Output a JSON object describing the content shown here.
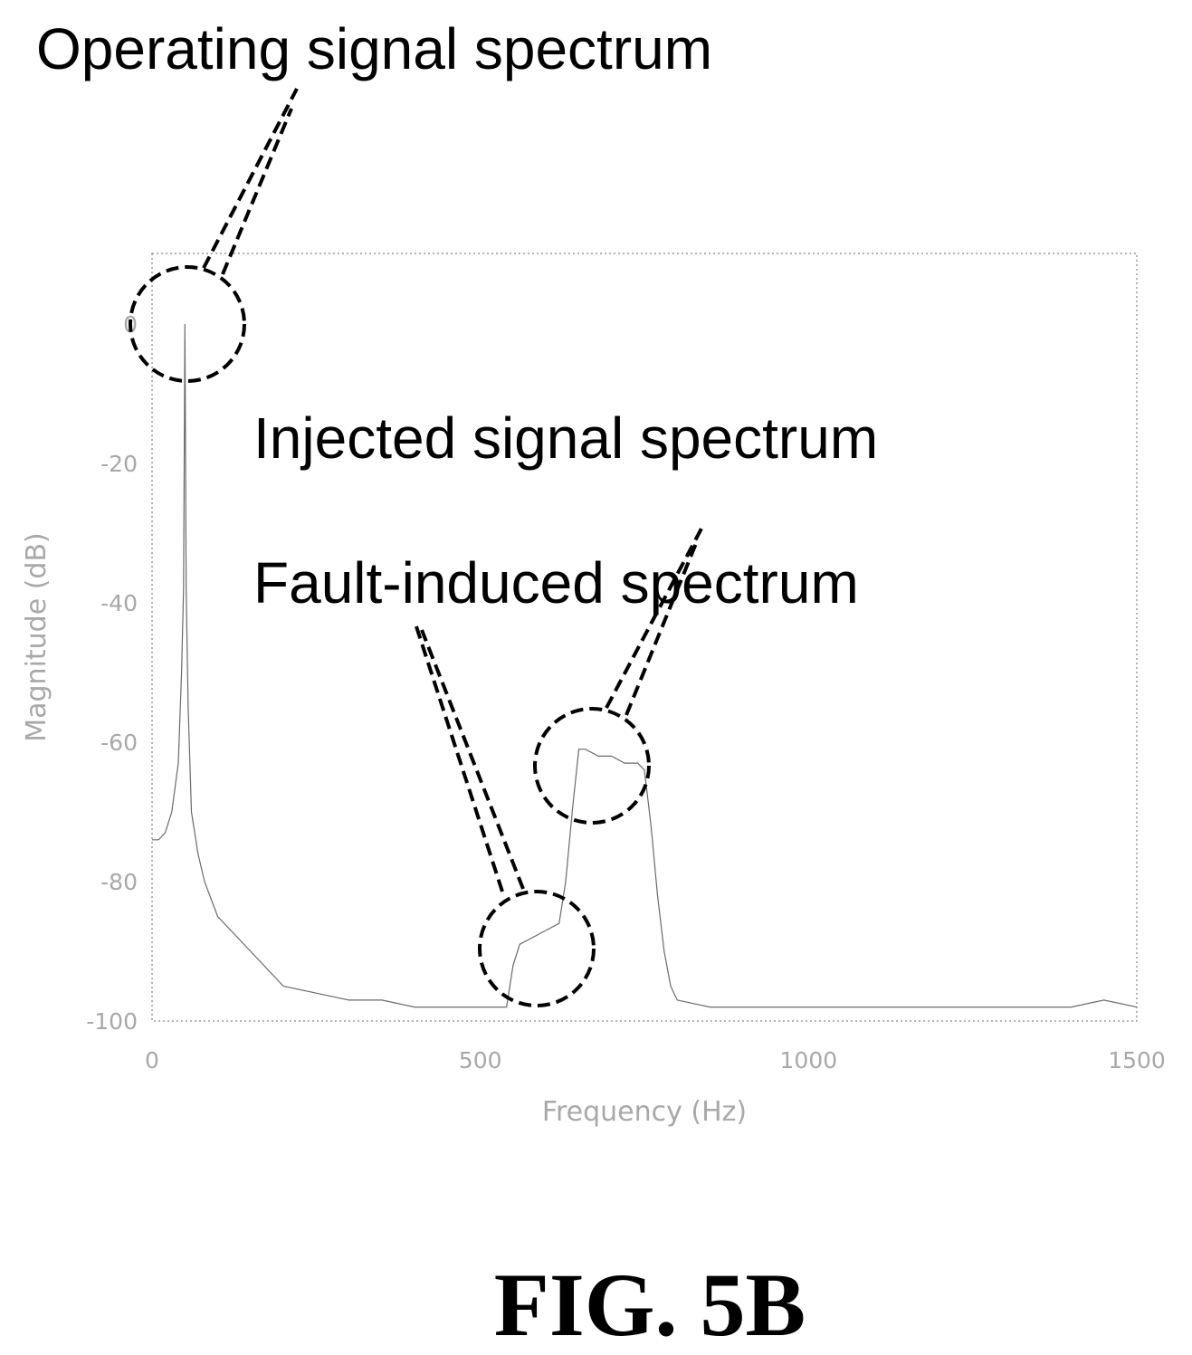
{
  "chart_data": {
    "type": "line",
    "xlabel": "Frequency (Hz)",
    "ylabel": "Magnitude (dB)",
    "xlim": [
      0,
      1500
    ],
    "ylim": [
      -100,
      10
    ],
    "xticks": [
      0,
      500,
      1000,
      1500
    ],
    "yticks": [
      0,
      -20,
      -40,
      -60,
      -80,
      -100
    ],
    "grid": false,
    "series": [
      {
        "x": [
          0,
          10,
          20,
          30,
          40,
          45,
          48,
          50,
          52,
          55,
          60,
          70,
          80,
          100,
          120,
          150,
          180,
          200,
          250,
          300,
          350,
          400,
          450,
          500,
          540,
          550,
          560,
          580,
          600,
          620,
          630,
          640,
          650,
          660,
          680,
          700,
          720,
          740,
          750,
          760,
          770,
          780,
          790,
          800,
          850,
          900,
          1000,
          1100,
          1200,
          1300,
          1400,
          1450,
          1500
        ],
        "y": [
          -74,
          -74,
          -73,
          -70,
          -63,
          -50,
          -38,
          0,
          -38,
          -55,
          -70,
          -76,
          -80,
          -85,
          -87,
          -90,
          -93,
          -95,
          -96,
          -97,
          -97,
          -98,
          -98,
          -98,
          -98,
          -92,
          -89,
          -88,
          -87,
          -86,
          -80,
          -70,
          -61,
          -61,
          -62,
          -62,
          -63,
          -63,
          -64,
          -72,
          -82,
          -90,
          -95,
          -97,
          -98,
          -98,
          -98,
          -98,
          -98,
          -98,
          -98,
          -97,
          -98
        ]
      }
    ],
    "annotations": [
      {
        "text": "Operating signal spectrum",
        "target_x": 50,
        "target_y": 0
      },
      {
        "text": "Injected signal spectrum",
        "target_x": 690,
        "target_y": -63
      },
      {
        "text": "Fault-induced spectrum",
        "target_x": 590,
        "target_y": -90
      }
    ]
  },
  "figure_label": "FIG. 5B"
}
